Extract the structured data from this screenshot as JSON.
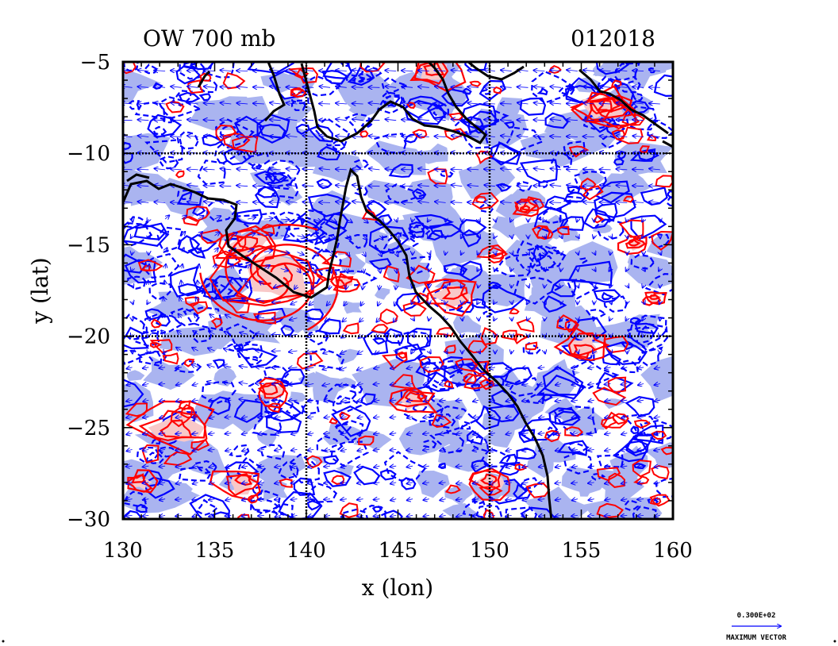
{
  "figure": {
    "title_left": "OW 700 mb",
    "title_right": "012018",
    "x_axis_label": "x (lon)",
    "y_axis_label": "y (lat)"
  },
  "map": {
    "lon_range": [
      130,
      160
    ],
    "lat_range": [
      -30,
      -5
    ],
    "x_ticks": [
      {
        "value": 130,
        "label": "130"
      },
      {
        "value": 135,
        "label": "135"
      },
      {
        "value": 140,
        "label": "140"
      },
      {
        "value": 145,
        "label": "145"
      },
      {
        "value": 150,
        "label": "150"
      },
      {
        "value": 155,
        "label": "155"
      },
      {
        "value": 160,
        "label": "160"
      }
    ],
    "y_ticks": [
      {
        "value": -5,
        "label": "−5"
      },
      {
        "value": -10,
        "label": "−10"
      },
      {
        "value": -15,
        "label": "−15"
      },
      {
        "value": -20,
        "label": "−20"
      },
      {
        "value": -25,
        "label": "−25"
      },
      {
        "value": -30,
        "label": "−30"
      }
    ],
    "grid_lon": [
      140,
      150
    ],
    "grid_lat": [
      -10,
      -20
    ],
    "colors": {
      "positive_contour": "#ff0000",
      "positive_fill": "#f8c8c8",
      "negative_contour": "#0000ff",
      "negative_fill": "#aab4f0",
      "vectors": "#0000ff",
      "coastline": "#000000"
    }
  },
  "vector_key": {
    "value_label": "0.300E+02",
    "caption": "MAXIMUM VECTOR"
  }
}
